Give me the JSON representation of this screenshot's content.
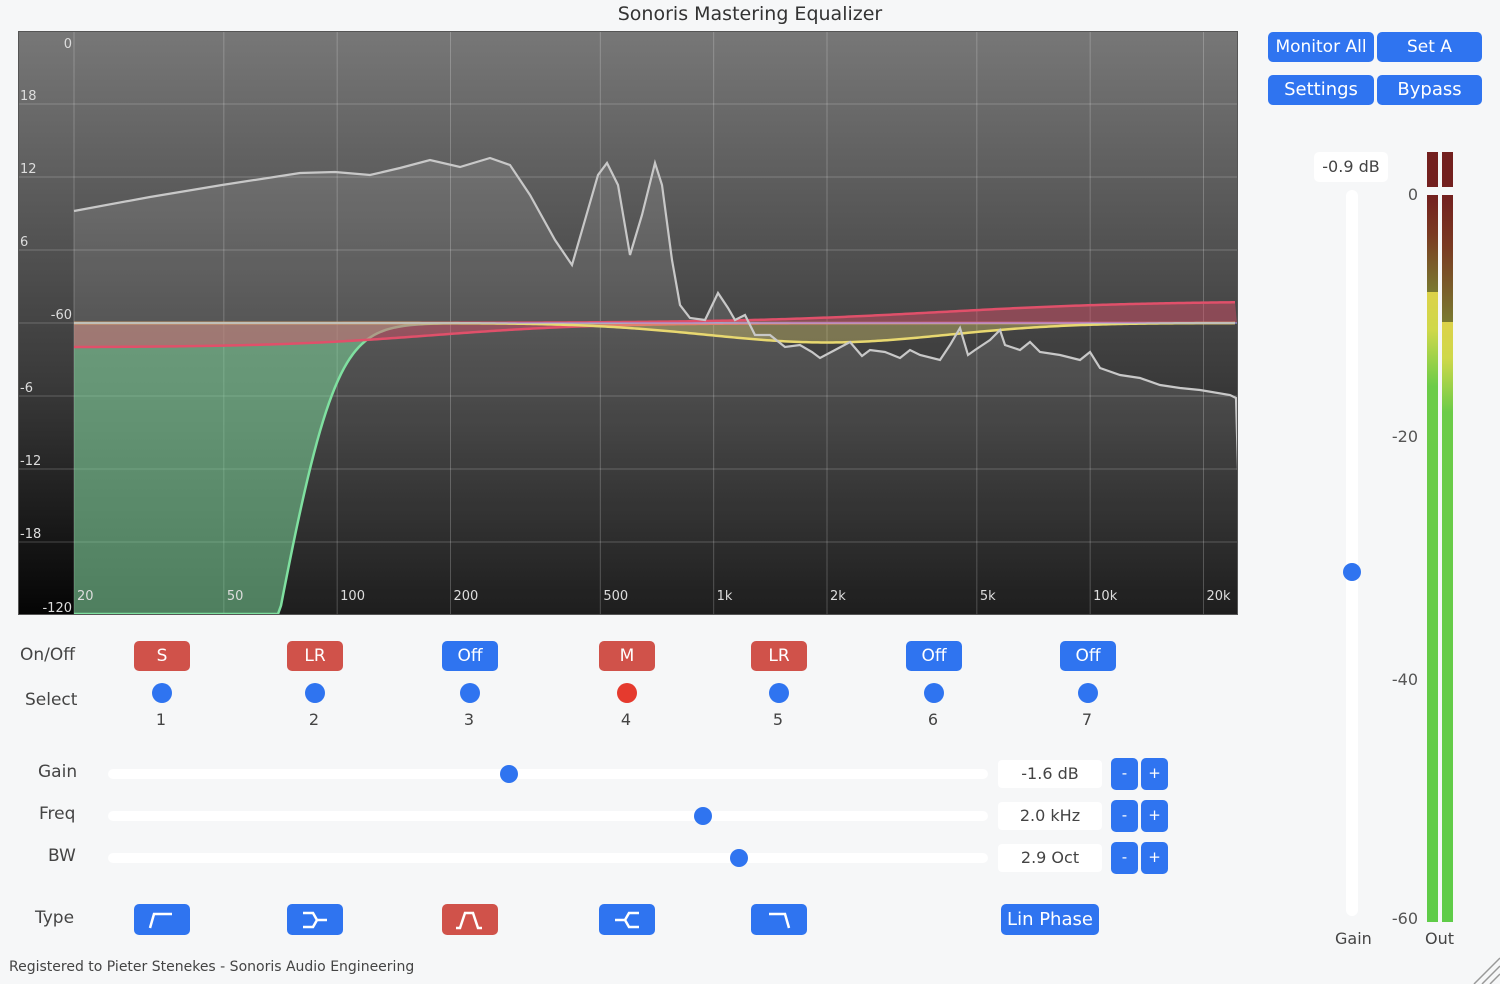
{
  "title": "Sonoris Mastering Equalizer",
  "graph": {
    "spectrum_db_labels": [
      "0",
      "-60",
      "-120"
    ],
    "gain_db_labels": [
      "18",
      "12",
      "6",
      "-6",
      "-12",
      "-18"
    ],
    "freq_labels": [
      "20",
      "50",
      "100",
      "200",
      "500",
      "1k",
      "2k",
      "5k",
      "10k",
      "20k"
    ],
    "colors": {
      "band1": "#7fe0a0",
      "band2": "#e0506a",
      "band4": "#e8d870",
      "spectrum": "#c8c8c8"
    }
  },
  "header_buttons": {
    "monitor_all": "Monitor All",
    "set_a": "Set A",
    "settings": "Settings",
    "bypass": "Bypass"
  },
  "rows": {
    "on_off": "On/Off",
    "select": "Select",
    "gain": "Gain",
    "freq": "Freq",
    "bw": "BW",
    "type": "Type"
  },
  "bands": [
    {
      "num": "1",
      "state": "S",
      "active": true,
      "selected": false,
      "type": "high-pass-icon"
    },
    {
      "num": "2",
      "state": "LR",
      "active": true,
      "selected": false,
      "type": "low-shelf-icon"
    },
    {
      "num": "3",
      "state": "Off",
      "active": false,
      "selected": false,
      "type": "bell-icon"
    },
    {
      "num": "4",
      "state": "M",
      "active": true,
      "selected": true,
      "type": "notch-icon"
    },
    {
      "num": "5",
      "state": "LR",
      "active": true,
      "selected": false,
      "type": "low-pass-icon"
    },
    {
      "num": "6",
      "state": "Off",
      "active": false,
      "selected": false
    },
    {
      "num": "7",
      "state": "Off",
      "active": false,
      "selected": false
    }
  ],
  "params": {
    "gain": {
      "value": "-1.6 dB",
      "fraction": 0.456
    },
    "freq": {
      "value": "2.0 kHz",
      "fraction": 0.676
    },
    "bw": {
      "value": "2.9 Oct",
      "fraction": 0.717
    },
    "minus": "-",
    "plus": "+"
  },
  "lin_phase": "Lin Phase",
  "output": {
    "gain_value": "-0.9 dB",
    "gain_fraction": 0.473,
    "gain_label": "Gain",
    "out_label": "Out",
    "scale": [
      "0",
      "-20",
      "-40",
      "-60"
    ],
    "meter_left_db": -8,
    "meter_right_db": -10.5
  },
  "footer": "Registered to Pieter Stenekes - Sonoris Audio Engineering"
}
